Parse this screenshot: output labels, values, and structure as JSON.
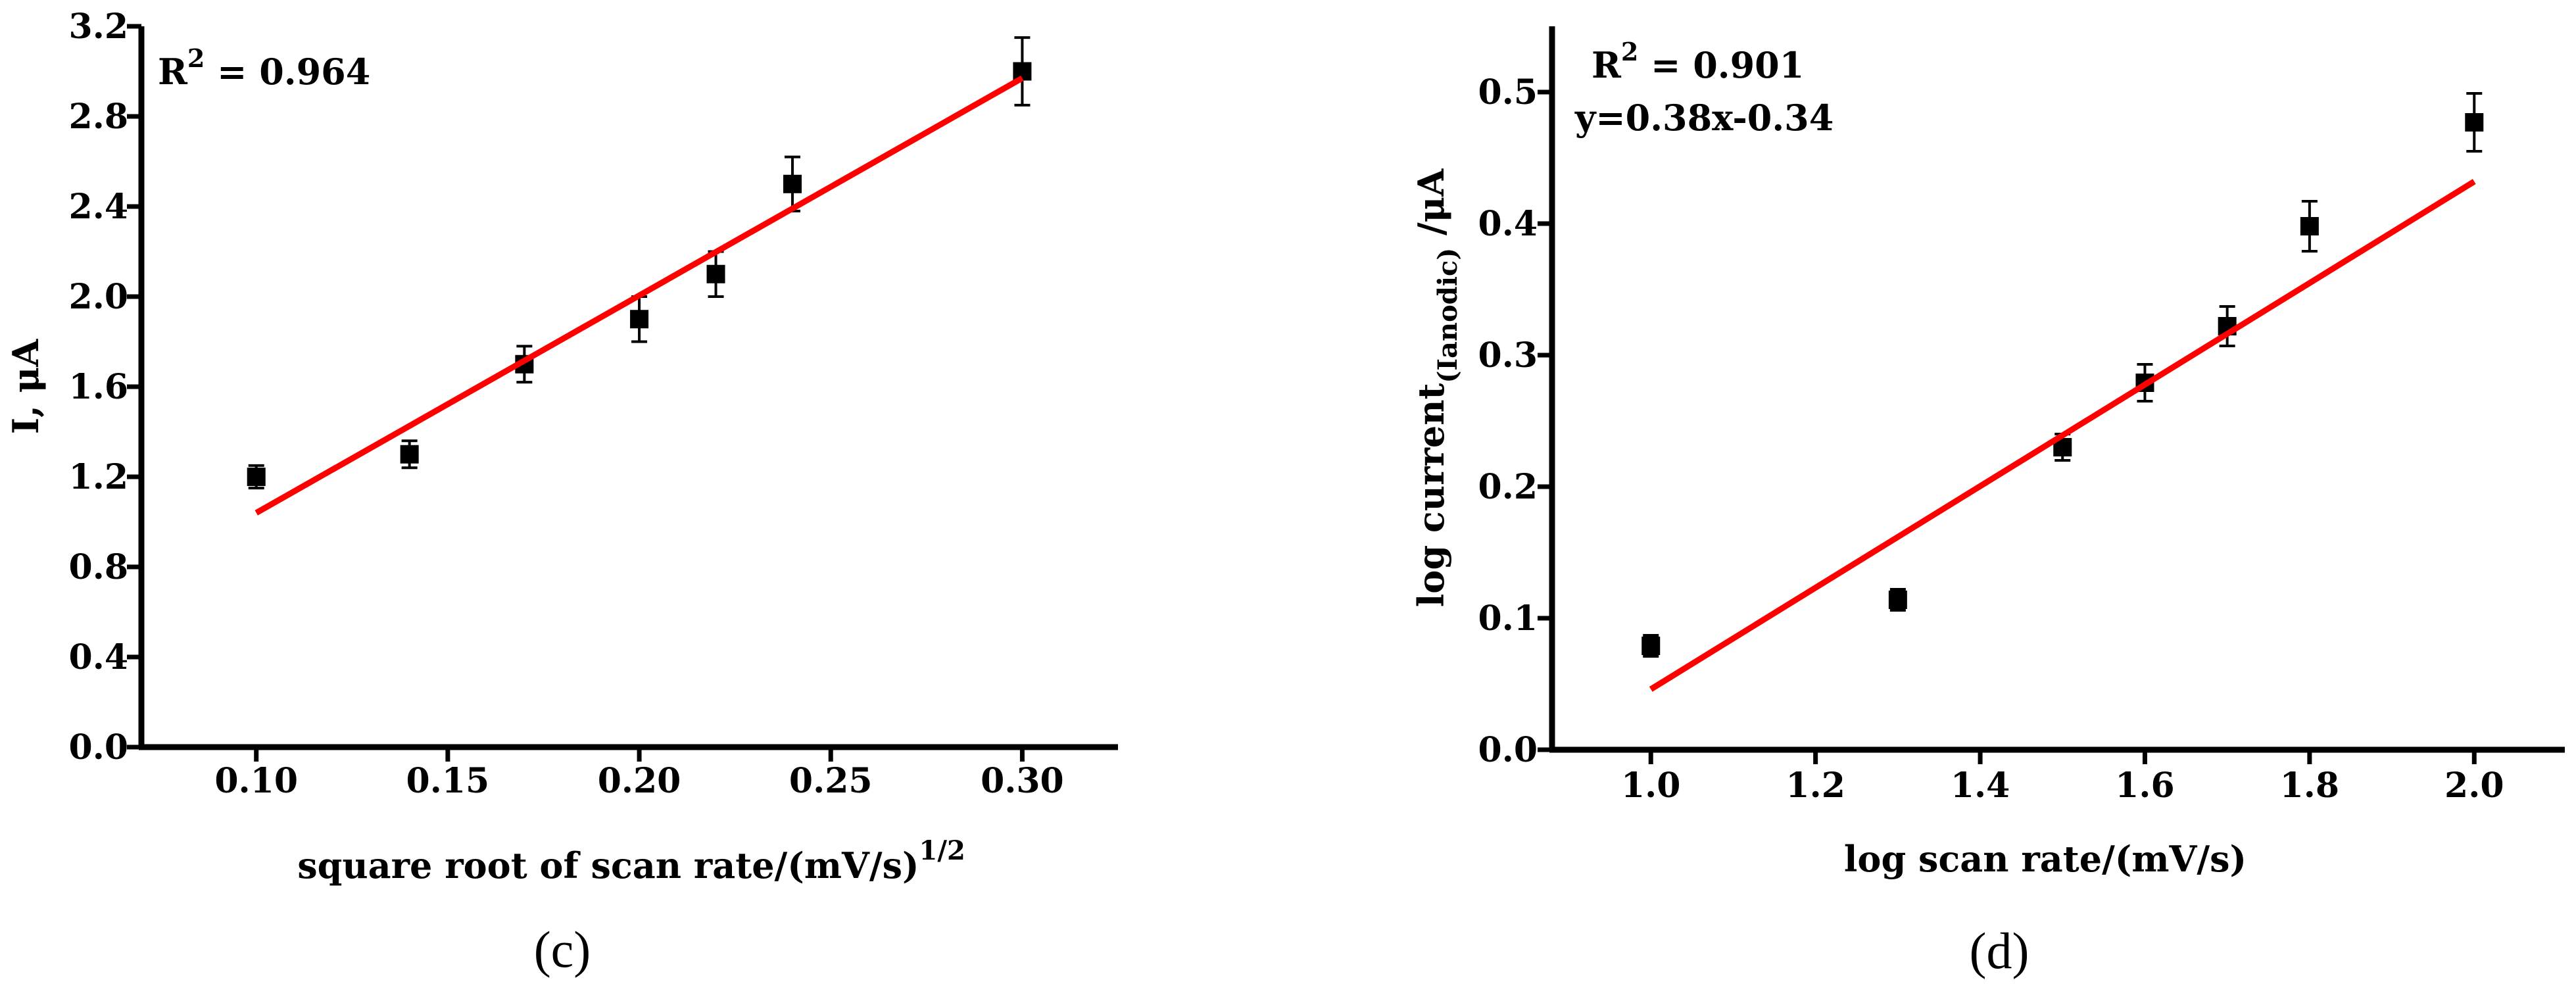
{
  "colors": {
    "axis": "#000000",
    "fit": "#ff0000",
    "marker": "#000000"
  },
  "chart_data": [
    {
      "type": "scatter",
      "caption": "(c)",
      "xlabel": "square root of scan rate/(mV/s)",
      "xlabel_sup": "1/2",
      "ylabel": "I, μA",
      "xlim": [
        0.07,
        0.325
      ],
      "ylim": [
        0.0,
        3.2
      ],
      "xticks": [
        0.1,
        0.15,
        0.2,
        0.25,
        0.3
      ],
      "xtick_labels": [
        "0.10",
        "0.15",
        "0.20",
        "0.25",
        "0.30"
      ],
      "yticks": [
        0.0,
        0.4,
        0.8,
        1.2,
        1.6,
        2.0,
        2.4,
        2.8,
        3.2
      ],
      "ytick_labels": [
        "0.0",
        "0.4",
        "0.8",
        "1.2",
        "1.6",
        "2.0",
        "2.4",
        "2.8",
        "3.2"
      ],
      "r2_label": "R",
      "r2_sup": "2",
      "r2_value": " = 0.964",
      "points": [
        {
          "x": 0.1,
          "y": 1.2,
          "err": 0.05
        },
        {
          "x": 0.14,
          "y": 1.3,
          "err": 0.06
        },
        {
          "x": 0.17,
          "y": 1.7,
          "err": 0.08
        },
        {
          "x": 0.2,
          "y": 1.9,
          "err": 0.1
        },
        {
          "x": 0.22,
          "y": 2.1,
          "err": 0.1
        },
        {
          "x": 0.24,
          "y": 2.5,
          "err": 0.12
        },
        {
          "x": 0.3,
          "y": 3.0,
          "err": 0.15
        }
      ],
      "fit": {
        "x": [
          0.1,
          0.3
        ],
        "y": [
          1.04,
          2.97
        ]
      }
    },
    {
      "type": "scatter",
      "caption": "(d)",
      "xlabel": "log scan rate/(mV/s)",
      "ylabel_main": "log current",
      "ylabel_sub": "(Ianodic)",
      "ylabel_end": " /μA",
      "xlim": [
        0.88,
        2.11
      ],
      "ylim": [
        0.0,
        0.55
      ],
      "xticks": [
        1.0,
        1.2,
        1.4,
        1.6,
        1.8,
        2.0
      ],
      "xtick_labels": [
        "1.0",
        "1.2",
        "1.4",
        "1.6",
        "1.8",
        "2.0"
      ],
      "yticks": [
        0.0,
        0.1,
        0.2,
        0.3,
        0.4,
        0.5
      ],
      "ytick_labels": [
        "0.0",
        "0.1",
        "0.2",
        "0.3",
        "0.4",
        "0.5"
      ],
      "r2_label": "R",
      "r2_sup": "2",
      "r2_value": " = 0.901",
      "equation": "y=0.38x-0.34",
      "points": [
        {
          "x": 1.0,
          "y": 0.079,
          "err": 0.008
        },
        {
          "x": 1.3,
          "y": 0.114,
          "err": 0.008
        },
        {
          "x": 1.5,
          "y": 0.23,
          "err": 0.01
        },
        {
          "x": 1.6,
          "y": 0.279,
          "err": 0.014
        },
        {
          "x": 1.7,
          "y": 0.322,
          "err": 0.015
        },
        {
          "x": 1.8,
          "y": 0.398,
          "err": 0.019
        },
        {
          "x": 2.0,
          "y": 0.477,
          "err": 0.022
        }
      ],
      "fit": {
        "x": [
          1.0,
          2.0
        ],
        "y": [
          0.046,
          0.432
        ]
      }
    }
  ]
}
